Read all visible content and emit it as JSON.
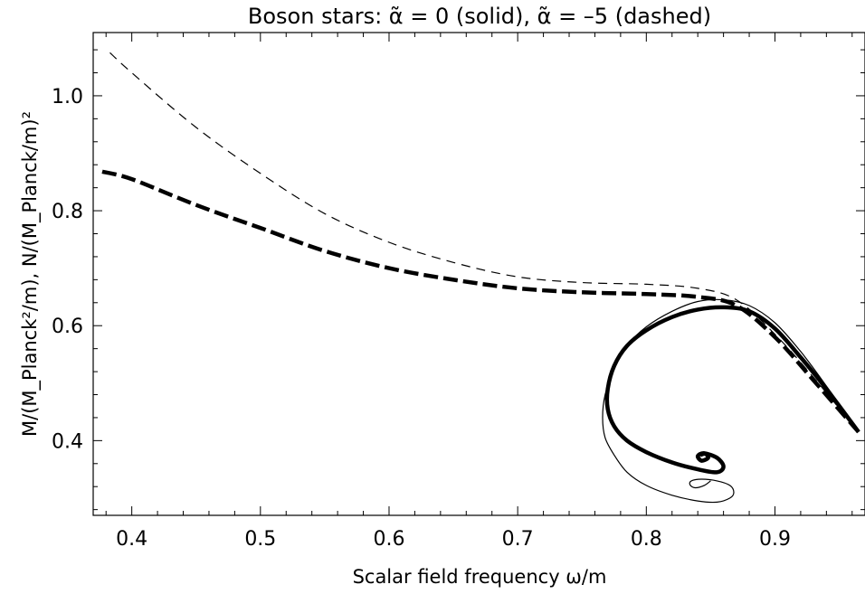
{
  "chart_data": {
    "type": "line",
    "title": "Boson stars: α̃ = 0 (solid), α̃ = –5 (dashed)",
    "xlabel": "Scalar field frequency ω/m",
    "ylabel": "M/(M_Planck²/m),  N/(M_Planck/m)²",
    "xlim": [
      0.37,
      0.97
    ],
    "ylim": [
      0.27,
      1.11
    ],
    "x_ticks": [
      0.4,
      0.5,
      0.6,
      0.7,
      0.8,
      0.9
    ],
    "x_tick_labels": [
      "0.4",
      "0.5",
      "0.6",
      "0.7",
      "0.8",
      "0.9"
    ],
    "y_ticks": [
      0.4,
      0.6,
      0.8,
      1.0
    ],
    "y_tick_labels": [
      "0.4",
      "0.6",
      "0.8",
      "1.0"
    ],
    "grid": false,
    "series": [
      {
        "style": "dashed-thin",
        "x": [
          0.383,
          0.4,
          0.45,
          0.5,
          0.55,
          0.6,
          0.65,
          0.7,
          0.75,
          0.8,
          0.84,
          0.87,
          0.9,
          0.93,
          0.965
        ],
        "y": [
          1.075,
          1.04,
          0.945,
          0.865,
          0.795,
          0.745,
          0.71,
          0.685,
          0.675,
          0.672,
          0.665,
          0.645,
          0.585,
          0.51,
          0.415
        ]
      },
      {
        "style": "dashed-thick",
        "x": [
          0.377,
          0.4,
          0.45,
          0.5,
          0.55,
          0.6,
          0.65,
          0.7,
          0.75,
          0.8,
          0.84,
          0.87,
          0.9,
          0.93,
          0.965
        ],
        "y": [
          0.868,
          0.855,
          0.81,
          0.77,
          0.73,
          0.7,
          0.68,
          0.665,
          0.658,
          0.655,
          0.65,
          0.635,
          0.58,
          0.505,
          0.415
        ]
      },
      {
        "style": "solid-thick",
        "x": [
          0.965,
          0.94,
          0.92,
          0.9,
          0.88,
          0.86,
          0.84,
          0.82,
          0.8,
          0.785,
          0.775,
          0.77,
          0.77,
          0.775,
          0.785,
          0.8,
          0.82,
          0.84,
          0.855,
          0.86,
          0.855,
          0.845,
          0.84,
          0.843,
          0.848,
          0.846,
          0.842
        ],
        "y": [
          0.415,
          0.49,
          0.545,
          0.595,
          0.625,
          0.632,
          0.628,
          0.615,
          0.592,
          0.565,
          0.53,
          0.49,
          0.455,
          0.425,
          0.4,
          0.38,
          0.362,
          0.35,
          0.345,
          0.355,
          0.37,
          0.378,
          0.373,
          0.365,
          0.37,
          0.377,
          0.375
        ]
      },
      {
        "style": "solid-thin",
        "x": [
          0.965,
          0.94,
          0.92,
          0.9,
          0.88,
          0.86,
          0.84,
          0.82,
          0.8,
          0.785,
          0.775,
          0.768,
          0.766,
          0.768,
          0.775,
          0.785,
          0.8,
          0.82,
          0.84,
          0.855,
          0.865,
          0.868,
          0.865,
          0.855,
          0.843,
          0.835,
          0.834,
          0.838,
          0.845,
          0.85
        ],
        "y": [
          0.415,
          0.495,
          0.555,
          0.605,
          0.635,
          0.645,
          0.642,
          0.625,
          0.598,
          0.565,
          0.525,
          0.48,
          0.44,
          0.405,
          0.375,
          0.345,
          0.322,
          0.305,
          0.295,
          0.293,
          0.3,
          0.31,
          0.322,
          0.33,
          0.333,
          0.33,
          0.323,
          0.318,
          0.322,
          0.33
        ]
      }
    ]
  }
}
